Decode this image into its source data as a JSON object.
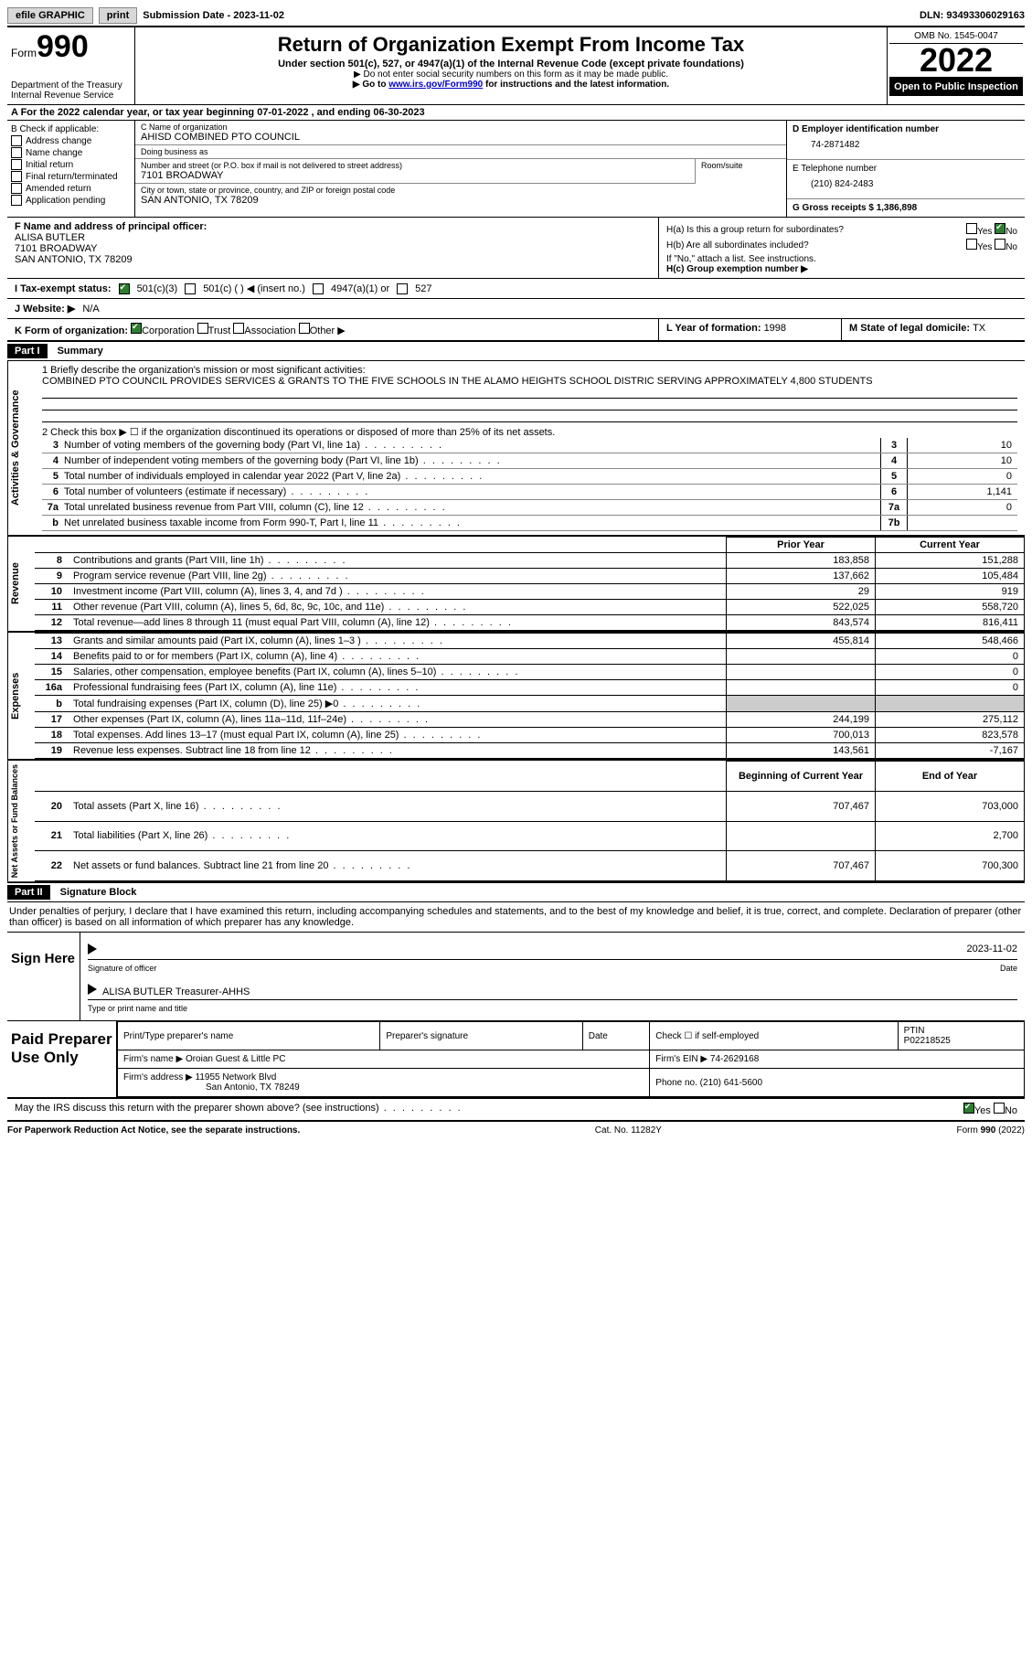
{
  "topbar": {
    "efile": "efile GRAPHIC",
    "print": "print",
    "submission_label": "Submission Date - ",
    "submission_date": "2023-11-02",
    "dln_label": "DLN: ",
    "dln": "93493306029163"
  },
  "header": {
    "form_word": "Form",
    "form_number": "990",
    "dept": "Department of the Treasury",
    "irs": "Internal Revenue Service",
    "title": "Return of Organization Exempt From Income Tax",
    "subtitle": "Under section 501(c), 527, or 4947(a)(1) of the Internal Revenue Code (except private foundations)",
    "note1": "▶ Do not enter social security numbers on this form as it may be made public.",
    "note2_pre": "▶ Go to ",
    "note2_link": "www.irs.gov/Form990",
    "note2_post": " for instructions and the latest information.",
    "omb": "OMB No. 1545-0047",
    "year": "2022",
    "open": "Open to Public Inspection"
  },
  "row_a": "A  For the 2022 calendar year, or tax year beginning 07-01-2022    , and ending 06-30-2023",
  "col_b": {
    "title": "B Check if applicable:",
    "items": [
      "Address change",
      "Name change",
      "Initial return",
      "Final return/terminated",
      "Amended return",
      "Application pending"
    ]
  },
  "col_c": {
    "name_lbl": "C Name of organization",
    "name": "AHISD COMBINED PTO COUNCIL",
    "dba_lbl": "Doing business as",
    "dba": "",
    "street_lbl": "Number and street (or P.O. box if mail is not delivered to street address)",
    "street": "7101 BROADWAY",
    "room_lbl": "Room/suite",
    "city_lbl": "City or town, state or province, country, and ZIP or foreign postal code",
    "city": "SAN ANTONIO, TX  78209"
  },
  "col_d": {
    "ein_lbl": "D Employer identification number",
    "ein": "74-2871482",
    "phone_lbl": "E Telephone number",
    "phone": "(210) 824-2483",
    "gross_lbl": "G Gross receipts $ ",
    "gross": "1,386,898"
  },
  "col_f": {
    "lbl": "F Name and address of principal officer:",
    "name": "ALISA BUTLER",
    "street": "7101 BROADWAY",
    "city": "SAN ANTONIO, TX  78209"
  },
  "col_h": {
    "ha": "H(a)  Is this a group return for subordinates?",
    "hb": "H(b)  Are all subordinates included?",
    "hb_note": "If \"No,\" attach a list. See instructions.",
    "hc": "H(c)  Group exemption number ▶",
    "yes": "Yes",
    "no": "No"
  },
  "row_i": {
    "lbl": "I    Tax-exempt status:",
    "o1": "501(c)(3)",
    "o2": "501(c) (  ) ◀ (insert no.)",
    "o3": "4947(a)(1) or",
    "o4": "527"
  },
  "row_j": {
    "lbl": "J   Website: ▶",
    "val": "N/A"
  },
  "row_k": {
    "lbl": "K Form of organization:",
    "o1": "Corporation",
    "o2": "Trust",
    "o3": "Association",
    "o4": "Other ▶"
  },
  "row_l": {
    "lbl": "L Year of formation: ",
    "val": "1998"
  },
  "row_m": {
    "lbl": "M State of legal domicile: ",
    "val": "TX"
  },
  "part1": {
    "header": "Part I",
    "title": "Summary",
    "line1_lbl": "1   Briefly describe the organization's mission or most significant activities:",
    "mission": "COMBINED PTO COUNCIL PROVIDES SERVICES & GRANTS TO THE FIVE SCHOOLS IN THE ALAMO HEIGHTS SCHOOL DISTRIC SERVING APPROXIMATELY 4,800 STUDENTS",
    "line2": "2   Check this box ▶ ☐  if the organization discontinued its operations or disposed of more than 25% of its net assets.",
    "vlabel_ag": "Activities & Governance",
    "vlabel_rev": "Revenue",
    "vlabel_exp": "Expenses",
    "vlabel_na": "Net Assets or Fund Balances"
  },
  "govlines": [
    {
      "n": "3",
      "d": "Number of voting members of the governing body (Part VI, line 1a)",
      "b": "3",
      "v": "10"
    },
    {
      "n": "4",
      "d": "Number of independent voting members of the governing body (Part VI, line 1b)",
      "b": "4",
      "v": "10"
    },
    {
      "n": "5",
      "d": "Total number of individuals employed in calendar year 2022 (Part V, line 2a)",
      "b": "5",
      "v": "0"
    },
    {
      "n": "6",
      "d": "Total number of volunteers (estimate if necessary)",
      "b": "6",
      "v": "1,141"
    },
    {
      "n": "7a",
      "d": "Total unrelated business revenue from Part VIII, column (C), line 12",
      "b": "7a",
      "v": "0"
    },
    {
      "n": "b",
      "d": "Net unrelated business taxable income from Form 990-T, Part I, line 11",
      "b": "7b",
      "v": ""
    }
  ],
  "fincols": {
    "prior": "Prior Year",
    "current": "Current Year",
    "begin": "Beginning of Current Year",
    "end": "End of Year"
  },
  "revenue": [
    {
      "n": "8",
      "d": "Contributions and grants (Part VIII, line 1h)",
      "p": "183,858",
      "c": "151,288"
    },
    {
      "n": "9",
      "d": "Program service revenue (Part VIII, line 2g)",
      "p": "137,662",
      "c": "105,484"
    },
    {
      "n": "10",
      "d": "Investment income (Part VIII, column (A), lines 3, 4, and 7d )",
      "p": "29",
      "c": "919"
    },
    {
      "n": "11",
      "d": "Other revenue (Part VIII, column (A), lines 5, 6d, 8c, 9c, 10c, and 11e)",
      "p": "522,025",
      "c": "558,720"
    },
    {
      "n": "12",
      "d": "Total revenue—add lines 8 through 11 (must equal Part VIII, column (A), line 12)",
      "p": "843,574",
      "c": "816,411"
    }
  ],
  "expenses": [
    {
      "n": "13",
      "d": "Grants and similar amounts paid (Part IX, column (A), lines 1–3 )",
      "p": "455,814",
      "c": "548,466"
    },
    {
      "n": "14",
      "d": "Benefits paid to or for members (Part IX, column (A), line 4)",
      "p": "",
      "c": "0"
    },
    {
      "n": "15",
      "d": "Salaries, other compensation, employee benefits (Part IX, column (A), lines 5–10)",
      "p": "",
      "c": "0"
    },
    {
      "n": "16a",
      "d": "Professional fundraising fees (Part IX, column (A), line 11e)",
      "p": "",
      "c": "0"
    },
    {
      "n": "b",
      "d": "Total fundraising expenses (Part IX, column (D), line 25) ▶0",
      "p": "SHADE",
      "c": "SHADE"
    },
    {
      "n": "17",
      "d": "Other expenses (Part IX, column (A), lines 11a–11d, 11f–24e)",
      "p": "244,199",
      "c": "275,112"
    },
    {
      "n": "18",
      "d": "Total expenses. Add lines 13–17 (must equal Part IX, column (A), line 25)",
      "p": "700,013",
      "c": "823,578"
    },
    {
      "n": "19",
      "d": "Revenue less expenses. Subtract line 18 from line 12",
      "p": "143,561",
      "c": "-7,167"
    }
  ],
  "netassets": [
    {
      "n": "20",
      "d": "Total assets (Part X, line 16)",
      "p": "707,467",
      "c": "703,000"
    },
    {
      "n": "21",
      "d": "Total liabilities (Part X, line 26)",
      "p": "",
      "c": "2,700"
    },
    {
      "n": "22",
      "d": "Net assets or fund balances. Subtract line 21 from line 20",
      "p": "707,467",
      "c": "700,300"
    }
  ],
  "part2": {
    "header": "Part II",
    "title": "Signature Block",
    "penalty": "Under penalties of perjury, I declare that I have examined this return, including accompanying schedules and statements, and to the best of my knowledge and belief, it is true, correct, and complete. Declaration of preparer (other than officer) is based on all information of which preparer has any knowledge."
  },
  "sign": {
    "label": "Sign Here",
    "sig_lbl": "Signature of officer",
    "date_lbl": "Date",
    "date": "2023-11-02",
    "name": "ALISA BUTLER  Treasurer-AHHS",
    "name_lbl": "Type or print name and title"
  },
  "prep": {
    "label": "Paid Preparer Use Only",
    "col1": "Print/Type preparer's name",
    "col2": "Preparer's signature",
    "col3": "Date",
    "col4": "Check ☐ if self-employed",
    "col5_lbl": "PTIN",
    "col5": "P02218525",
    "firm_name_lbl": "Firm's name    ▶ ",
    "firm_name": "Oroian Guest & Little PC",
    "firm_ein_lbl": "Firm's EIN ▶ ",
    "firm_ein": "74-2629168",
    "firm_addr_lbl": "Firm's address ▶ ",
    "firm_addr1": "11955 Network Blvd",
    "firm_addr2": "San Antonio, TX  78249",
    "phone_lbl": "Phone no. ",
    "phone": "(210) 641-5600"
  },
  "discuss": {
    "text": "May the IRS discuss this return with the preparer shown above? (see instructions)",
    "yes": "Yes",
    "no": "No"
  },
  "footer": {
    "left": "For Paperwork Reduction Act Notice, see the separate instructions.",
    "mid": "Cat. No. 11282Y",
    "right": "Form 990 (2022)"
  }
}
